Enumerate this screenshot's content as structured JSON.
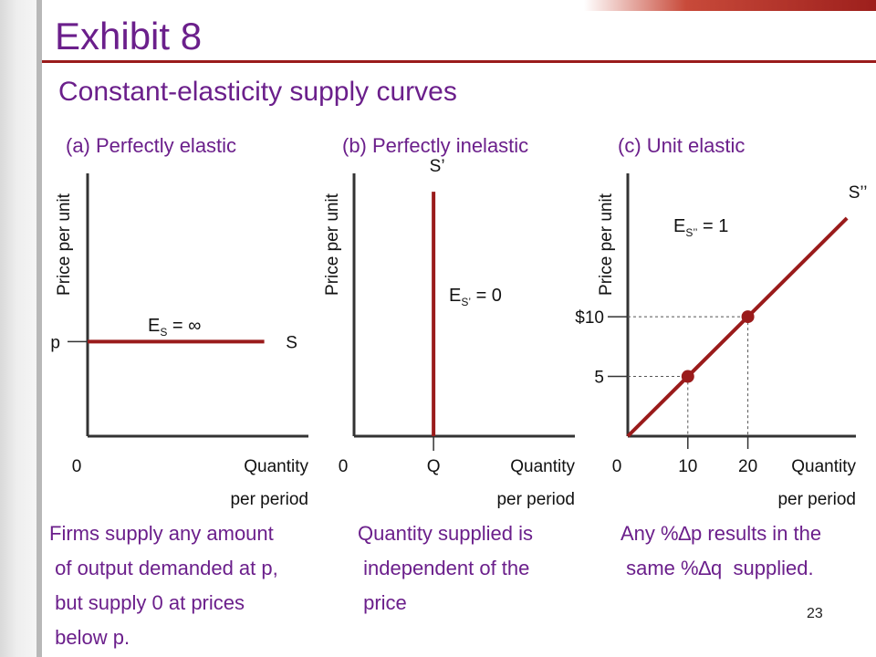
{
  "title": "Exhibit 8",
  "subtitle": "Constant-elasticity supply curves",
  "page_number": "23",
  "colors": {
    "title_text": "#6b1f8b",
    "curve": "#9a1b1b",
    "axis": "#333333",
    "header_line": "#9a1b1b"
  },
  "panels": [
    {
      "label": "(a) Perfectly elastic",
      "caption": "Firms supply any amount\n of output demanded at p,\n but supply 0 at prices\n below p."
    },
    {
      "label": "(b) Perfectly inelastic",
      "caption": "Quantity supplied is\n independent of the\n price"
    },
    {
      "label": "(c) Unit elastic",
      "caption": "Any %∆p results in the\n same %∆q  supplied."
    }
  ],
  "chart_data": [
    {
      "type": "line",
      "title": "(a) Perfectly elastic",
      "ylabel": "Price per unit",
      "xlabel": [
        "Quantity",
        "per period"
      ],
      "origin_label": "0",
      "y_tick_labels": [
        "p"
      ],
      "xlim": [
        0,
        10
      ],
      "ylim": [
        0,
        10
      ],
      "series": [
        {
          "name": "S",
          "x": [
            0,
            8
          ],
          "y": [
            3.6,
            3.6
          ]
        }
      ],
      "annotations": [
        {
          "text": "E",
          "sub": "S",
          "rest": " = ∞"
        }
      ]
    },
    {
      "type": "line",
      "title": "(b) Perfectly inelastic",
      "ylabel": "Price per unit",
      "xlabel": [
        "Quantity",
        "per period"
      ],
      "origin_label": "0",
      "x_tick_labels": [
        "Q"
      ],
      "xlim": [
        0,
        10
      ],
      "ylim": [
        0,
        10
      ],
      "series": [
        {
          "name": "S’",
          "x": [
            3.6,
            3.6
          ],
          "y": [
            0,
            9.3
          ]
        }
      ],
      "annotations": [
        {
          "text": "E",
          "sub": "S’",
          "rest": " = 0"
        }
      ]
    },
    {
      "type": "line",
      "title": "(c) Unit elastic",
      "ylabel": "Price per unit",
      "xlabel": [
        "Quantity",
        "per period"
      ],
      "origin_label": "0",
      "x_ticks": [
        10,
        20
      ],
      "x_tick_labels": [
        "10",
        "20"
      ],
      "y_ticks": [
        5,
        10
      ],
      "y_tick_labels": [
        "5",
        "$10"
      ],
      "xlim": [
        0,
        38
      ],
      "ylim": [
        0,
        22
      ],
      "series": [
        {
          "name": "S’’",
          "x": [
            0,
            36.5
          ],
          "y": [
            0,
            18.25
          ]
        }
      ],
      "points": [
        {
          "x": 10,
          "y": 5
        },
        {
          "x": 20,
          "y": 10
        }
      ],
      "annotations": [
        {
          "text": "E",
          "sub": "S’’",
          "rest": " = 1"
        }
      ]
    }
  ]
}
